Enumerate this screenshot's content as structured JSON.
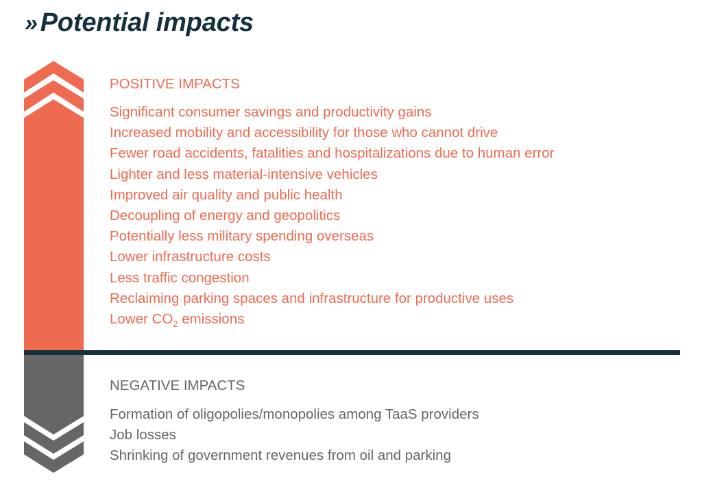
{
  "title": {
    "prefix": "»",
    "text": "Potential impacts"
  },
  "colors": {
    "positive": "#ee6a50",
    "negative": "#666666",
    "divider": "#16303e",
    "title": "#16303e"
  },
  "positive": {
    "heading": "POSITIVE IMPACTS",
    "items": [
      "Significant consumer savings and productivity gains",
      "Increased mobility and accessibility for those who cannot drive",
      "Fewer road accidents, fatalities and hospitalizations due to human error",
      "Lighter and less material-intensive vehicles",
      "Improved air quality and public health",
      "Decoupling of energy and geopolitics",
      "Potentially less military spending overseas",
      "Lower infrastructure costs",
      "Less traffic congestion",
      "Reclaiming parking spaces and infrastructure for productive uses"
    ],
    "last_item": {
      "before": "Lower CO",
      "subscript": "2",
      "after": " emissions"
    }
  },
  "negative": {
    "heading": "NEGATIVE IMPACTS",
    "items": [
      "Formation of oligopolies/monopolies among TaaS providers",
      "Job losses",
      "Shrinking of government revenues from oil and parking"
    ]
  }
}
